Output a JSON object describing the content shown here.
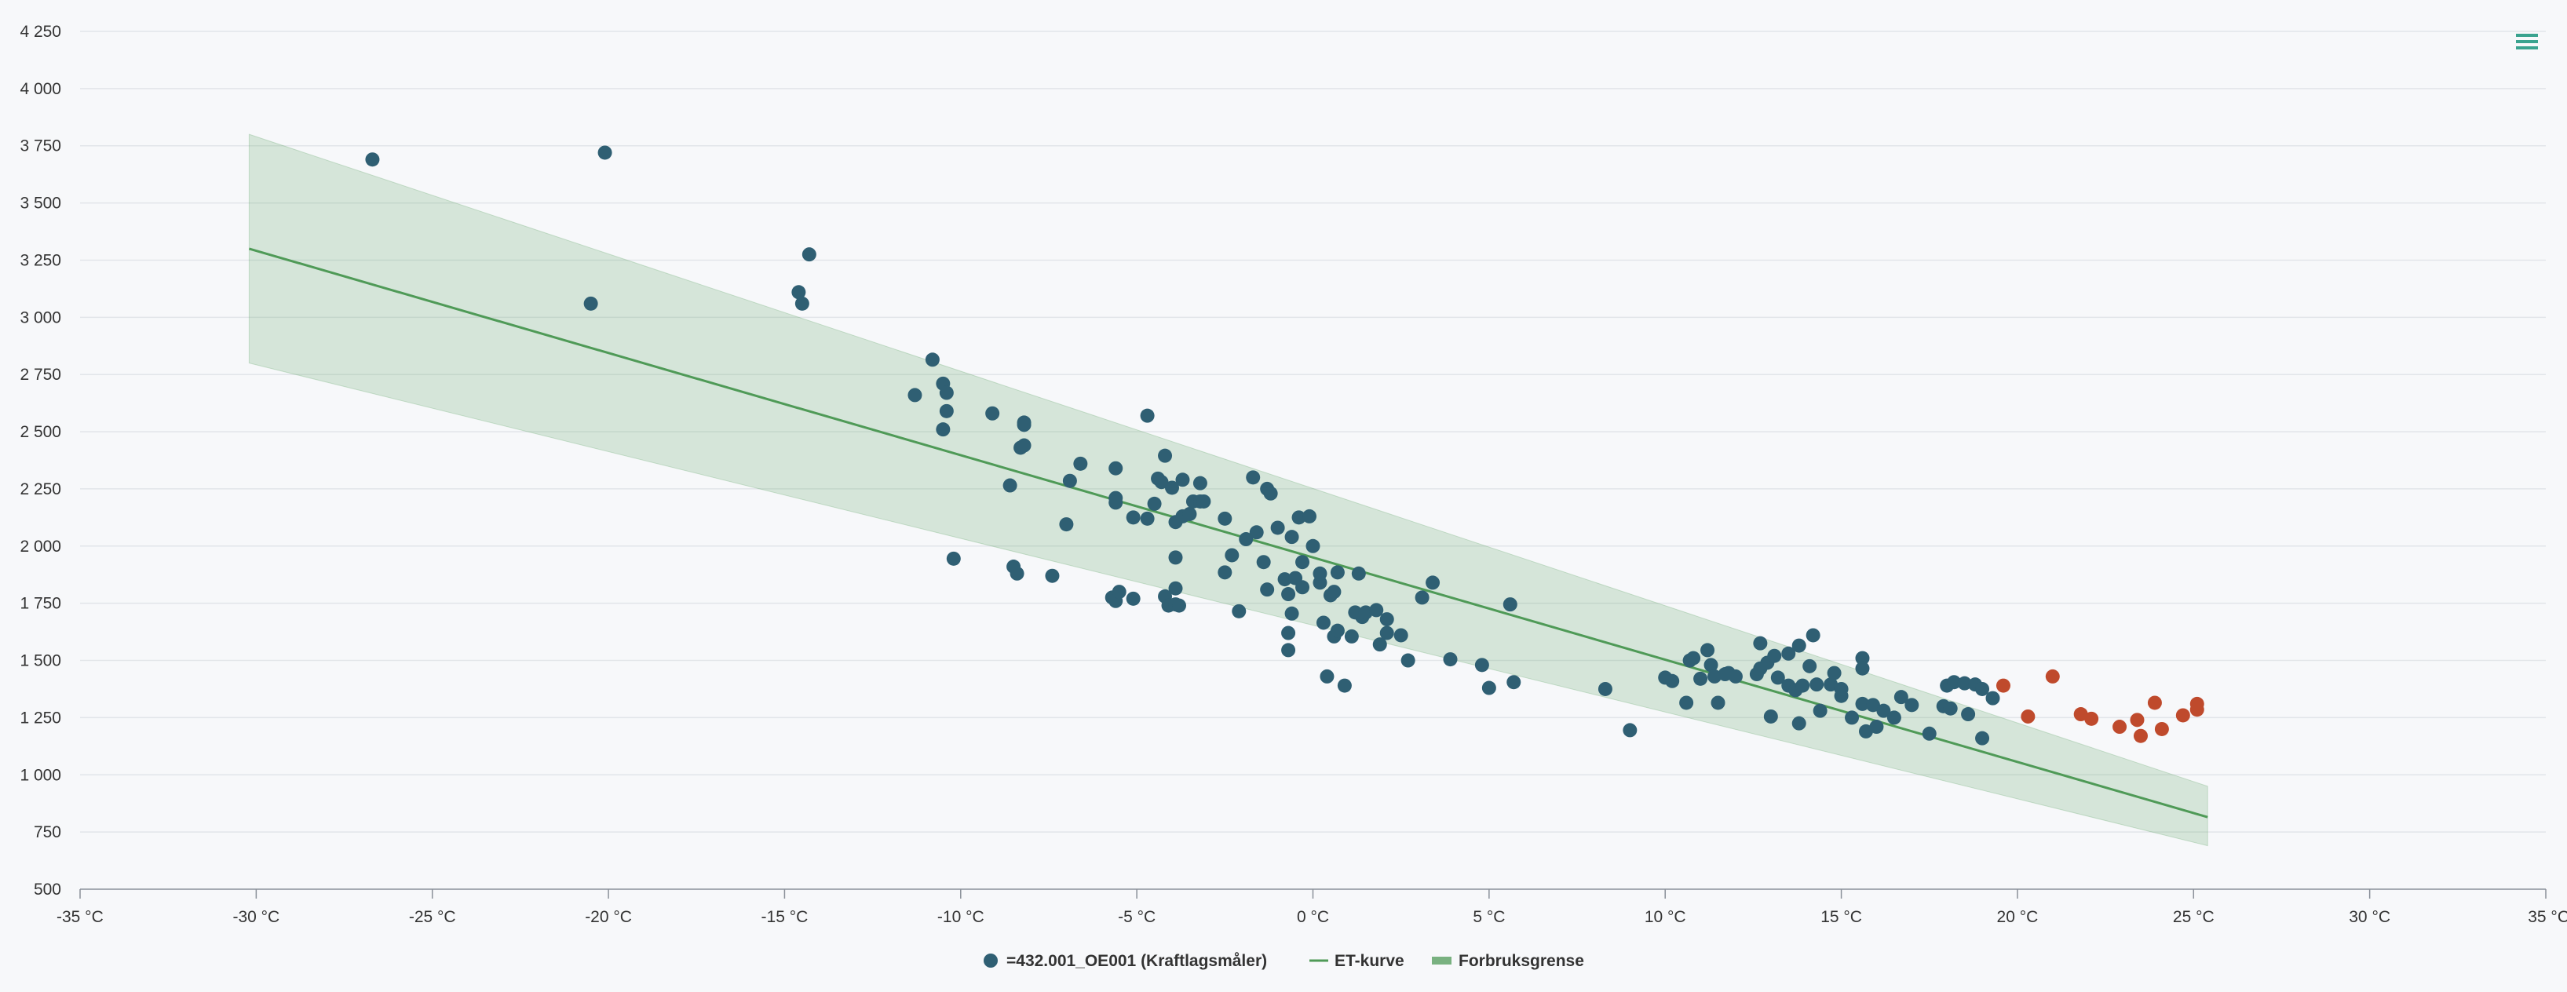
{
  "chart_data": {
    "type": "scatter",
    "x_axis": {
      "min": -35,
      "max": 35,
      "step": 5,
      "unit": "°C",
      "tick_labels": [
        "-35 °C",
        "-30 °C",
        "-25 °C",
        "-20 °C",
        "-15 °C",
        "-10 °C",
        "-5 °C",
        "0 °C",
        "5 °C",
        "10 °C",
        "15 °C",
        "20 °C",
        "25 °C",
        "30 °C",
        "35 °C"
      ]
    },
    "y_axis": {
      "min": 500,
      "max": 4250,
      "step": 250,
      "tick_labels": [
        "500",
        "750",
        "1 000",
        "1 250",
        "1 500",
        "1 750",
        "2 000",
        "2 250",
        "2 500",
        "2 750",
        "3 000",
        "3 250",
        "3 500",
        "3 750",
        "4 000",
        "4 250"
      ]
    },
    "grid": true,
    "legend_position": "bottom-center",
    "series": [
      {
        "name": "=432.001_OE001 (Kraftlagsmåler)",
        "type": "scatter",
        "color": "#2f5f73",
        "outlier_color": "#bf4a2c",
        "points": [
          [
            -20.5,
            3060
          ],
          [
            -11.3,
            2660
          ],
          [
            -10.5,
            2710
          ],
          [
            -10.4,
            2670
          ],
          [
            -10.4,
            2590
          ],
          [
            -10.5,
            2510
          ],
          [
            -10.2,
            1945
          ],
          [
            -9.1,
            2580
          ],
          [
            -8.6,
            2265
          ],
          [
            -8.5,
            1910
          ],
          [
            -8.4,
            1880
          ],
          [
            -8.3,
            2430
          ],
          [
            -8.2,
            2440
          ],
          [
            -8.2,
            2530
          ],
          [
            -8.2,
            2540
          ],
          [
            -7.4,
            1870
          ],
          [
            -7.0,
            2095
          ],
          [
            -6.9,
            2285
          ],
          [
            -6.6,
            2360
          ],
          [
            -5.7,
            1775
          ],
          [
            -5.6,
            1760
          ],
          [
            -5.6,
            2210
          ],
          [
            -5.6,
            2190
          ],
          [
            -5.6,
            2340
          ],
          [
            -5.5,
            1800
          ],
          [
            -5.1,
            2125
          ],
          [
            -5.1,
            1770
          ],
          [
            -4.7,
            2120
          ],
          [
            -4.5,
            2185
          ],
          [
            -4.4,
            2295
          ],
          [
            -4.3,
            2280
          ],
          [
            -4.2,
            1780
          ],
          [
            -4.2,
            2395
          ],
          [
            -4.1,
            1740
          ],
          [
            -4.0,
            2255
          ],
          [
            -3.9,
            1745
          ],
          [
            -3.9,
            1950
          ],
          [
            -3.9,
            1815
          ],
          [
            -3.9,
            2105
          ],
          [
            -3.8,
            1740
          ],
          [
            -3.7,
            2130
          ],
          [
            -3.7,
            2290
          ],
          [
            -3.5,
            2140
          ],
          [
            -3.4,
            2195
          ],
          [
            -3.2,
            2195
          ],
          [
            -3.2,
            2275
          ],
          [
            -3.1,
            2195
          ],
          [
            -2.5,
            2120
          ],
          [
            -2.5,
            1885
          ],
          [
            -2.3,
            1960
          ],
          [
            -2.1,
            1715
          ],
          [
            -1.9,
            2030
          ],
          [
            -1.7,
            2300
          ],
          [
            -1.6,
            2060
          ],
          [
            -1.4,
            1930
          ],
          [
            -1.3,
            1810
          ],
          [
            -1.3,
            2250
          ],
          [
            -1.2,
            2230
          ],
          [
            -1.0,
            2080
          ],
          [
            -0.8,
            1855
          ],
          [
            -0.7,
            1545
          ],
          [
            -0.7,
            1620
          ],
          [
            -0.7,
            1790
          ],
          [
            -0.6,
            2040
          ],
          [
            -0.6,
            1705
          ],
          [
            -0.5,
            1860
          ],
          [
            -0.4,
            2125
          ],
          [
            -0.3,
            1930
          ],
          [
            -0.3,
            1820
          ],
          [
            -0.1,
            2130
          ],
          [
            0.0,
            2000
          ],
          [
            0.2,
            1840
          ],
          [
            0.2,
            1880
          ],
          [
            0.3,
            1665
          ],
          [
            0.4,
            1430
          ],
          [
            0.5,
            1785
          ],
          [
            0.6,
            1605
          ],
          [
            0.6,
            1800
          ],
          [
            0.7,
            1630
          ],
          [
            0.7,
            1885
          ],
          [
            0.9,
            1390
          ],
          [
            1.1,
            1605
          ],
          [
            1.2,
            1710
          ],
          [
            1.3,
            1880
          ],
          [
            1.4,
            1690
          ],
          [
            1.5,
            1710
          ],
          [
            1.8,
            1720
          ],
          [
            1.9,
            1570
          ],
          [
            2.1,
            1620
          ],
          [
            2.1,
            1680
          ],
          [
            2.5,
            1610
          ],
          [
            2.7,
            1500
          ],
          [
            3.1,
            1775
          ],
          [
            3.4,
            1840
          ],
          [
            3.9,
            1505
          ],
          [
            4.8,
            1480
          ],
          [
            5.0,
            1380
          ],
          [
            5.6,
            1745
          ],
          [
            5.7,
            1405
          ],
          [
            8.3,
            1375
          ],
          [
            9.0,
            1195
          ],
          [
            10.0,
            1425
          ],
          [
            10.2,
            1410
          ],
          [
            10.6,
            1315
          ],
          [
            10.7,
            1500
          ],
          [
            10.8,
            1510
          ],
          [
            11.0,
            1420
          ],
          [
            11.2,
            1545
          ],
          [
            11.3,
            1480
          ],
          [
            11.4,
            1430
          ],
          [
            11.5,
            1315
          ],
          [
            11.7,
            1440
          ],
          [
            11.8,
            1445
          ],
          [
            12.0,
            1430
          ],
          [
            12.6,
            1440
          ],
          [
            12.7,
            1465
          ],
          [
            12.7,
            1575
          ],
          [
            12.9,
            1490
          ],
          [
            13.0,
            1255
          ],
          [
            13.1,
            1520
          ],
          [
            13.2,
            1425
          ],
          [
            13.5,
            1530
          ],
          [
            13.5,
            1390
          ],
          [
            13.7,
            1370
          ],
          [
            13.8,
            1225
          ],
          [
            13.9,
            1390
          ],
          [
            14.1,
            1475
          ],
          [
            14.3,
            1395
          ],
          [
            14.4,
            1280
          ],
          [
            14.7,
            1395
          ],
          [
            14.8,
            1445
          ],
          [
            15.0,
            1345
          ],
          [
            15.0,
            1375
          ],
          [
            15.3,
            1250
          ],
          [
            15.6,
            1310
          ],
          [
            15.7,
            1190
          ],
          [
            15.9,
            1305
          ],
          [
            16.0,
            1210
          ],
          [
            16.2,
            1280
          ],
          [
            16.5,
            1250
          ],
          [
            16.7,
            1340
          ],
          [
            17.0,
            1305
          ],
          [
            17.5,
            1180
          ],
          [
            17.9,
            1300
          ],
          [
            18.1,
            1290
          ],
          [
            18.6,
            1265
          ],
          [
            19.0,
            1160
          ],
          [
            -26.7,
            3690
          ],
          [
            -20.1,
            3720
          ],
          [
            -14.6,
            3110
          ],
          [
            -14.5,
            3060
          ],
          [
            -14.3,
            3275
          ],
          [
            -10.8,
            2815
          ],
          [
            -4.7,
            2570
          ],
          [
            13.8,
            1565
          ],
          [
            14.2,
            1610
          ],
          [
            15.6,
            1510
          ],
          [
            15.6,
            1465
          ],
          [
            18.0,
            1390
          ],
          [
            18.2,
            1405
          ],
          [
            18.5,
            1400
          ],
          [
            18.8,
            1395
          ],
          [
            19.0,
            1375
          ],
          [
            19.3,
            1335
          ],
          [
            19.6,
            1390
          ],
          [
            20.3,
            1255
          ],
          [
            21.0,
            1430
          ],
          [
            21.8,
            1265
          ],
          [
            22.1,
            1245
          ],
          [
            22.9,
            1210
          ],
          [
            23.4,
            1240
          ],
          [
            23.5,
            1170
          ],
          [
            23.9,
            1315
          ],
          [
            24.1,
            1200
          ],
          [
            24.7,
            1260
          ],
          [
            25.1,
            1285
          ],
          [
            25.1,
            1310
          ]
        ],
        "outlier_start_index": 164
      },
      {
        "name": "ET-kurve",
        "type": "line",
        "color": "#4f9a57",
        "points": [
          [
            -30.2,
            3300
          ],
          [
            25.4,
            815
          ]
        ]
      },
      {
        "name": "Forbruksgrense",
        "type": "area-range",
        "color": "#4f9a57",
        "upper": [
          [
            -30.2,
            3800
          ],
          [
            25.4,
            950
          ]
        ],
        "lower": [
          [
            -30.2,
            2800
          ],
          [
            25.4,
            690
          ]
        ]
      }
    ]
  },
  "legend": {
    "items": [
      {
        "label": "=432.001_OE001 (Kraftlagsmåler)"
      },
      {
        "label": "ET-kurve"
      },
      {
        "label": "Forbruksgrense"
      }
    ]
  },
  "menu": {
    "icon": "hamburger-menu-icon",
    "color": "#3aa38f"
  }
}
